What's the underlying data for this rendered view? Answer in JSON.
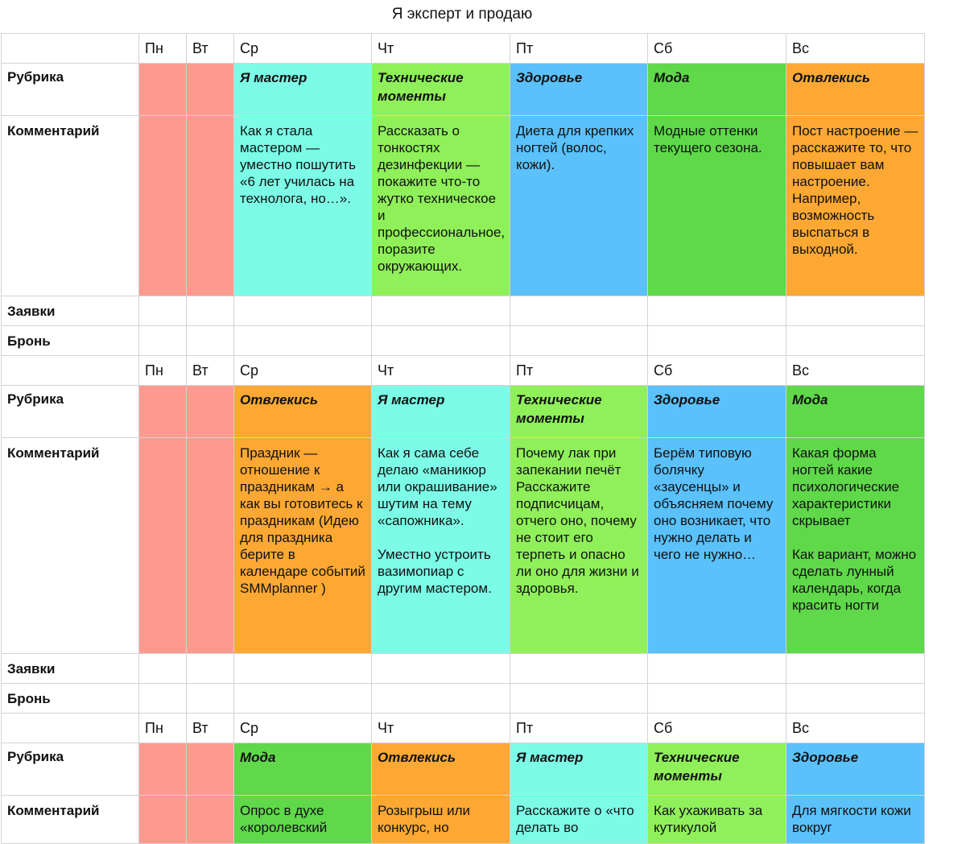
{
  "title": "Я эксперт и продаю",
  "labels": {
    "rubric": "Рубрика",
    "comment": "Комментарий",
    "requests": "Заявки",
    "booking": "Бронь"
  },
  "days": [
    "Пн",
    "Вт",
    "Ср",
    "Чт",
    "Пт",
    "Сб",
    "Вс"
  ],
  "colors": {
    "mon_tue": "#fd9a90",
    "Я мастер": "#7cfce7",
    "Технические моменты": "#8ff05a",
    "Здоровье": "#5ac1fb",
    "Мода": "#5fd84a",
    "Отвлекись": "#fca833"
  },
  "weeks": [
    {
      "cells": [
        {
          "rubric": "Я мастер",
          "comment": [
            "Как я стала мастером — уместно пошутить «6 лет училась на технолога, но…»."
          ]
        },
        {
          "rubric": "Технические моменты",
          "comment": [
            "Рассказать о тонкостях дезинфекции — покажите что-то жутко техническое и профессиональное, поразите окружающих."
          ]
        },
        {
          "rubric": "Здоровье",
          "comment": [
            "Диета для крепких ногтей (волос, кожи)."
          ]
        },
        {
          "rubric": "Мода",
          "comment": [
            "Модные оттенки текущего сезона."
          ]
        },
        {
          "rubric": "Отвлекись",
          "comment": [
            "Пост настроение — расскажите то, что повышает вам настроение. Например, возможность выспаться в выходной."
          ]
        }
      ]
    },
    {
      "cells": [
        {
          "rubric": "Отвлекись",
          "comment": [
            "Праздник — отношение к праздникам → а как вы готовитесь к праздникам (Идею для праздника берите в календаре событий SMMplanner )"
          ]
        },
        {
          "rubric": "Я мастер",
          "comment": [
            "Как я сама себе делаю «маникюр или окрашивание» шутим на тему «сапожника».",
            "Уместно устроить вазимопиар с другим мастером."
          ]
        },
        {
          "rubric": "Технические моменты",
          "comment": [
            "Почему лак при запекании печёт Расскажите подписчицам, отчего оно, почему не стоит его терпеть и опасно ли оно для жизни и здоровья."
          ]
        },
        {
          "rubric": "Здоровье",
          "comment": [
            "Берём типовую болячку «заусенцы» и объясняем почему оно возникает, что нужно делать и чего не нужно…"
          ]
        },
        {
          "rubric": "Мода",
          "comment": [
            "Какая форма ногтей какие психологические характеристики скрывает",
            "Как вариант, можно сделать лунный календарь, когда красить ногти"
          ]
        }
      ]
    },
    {
      "cells": [
        {
          "rubric": "Мода",
          "comment": [
            "Опрос в духе «королевский"
          ]
        },
        {
          "rubric": "Отвлекись",
          "comment": [
            "Розыгрыш или конкурс, но"
          ]
        },
        {
          "rubric": "Я мастер",
          "comment": [
            "Расскажите о «что делать во"
          ]
        },
        {
          "rubric": "Технические моменты",
          "comment": [
            "Как ухаживать за кутикулой"
          ]
        },
        {
          "rubric": "Здоровье",
          "comment": [
            "Для мягкости кожи вокруг"
          ]
        }
      ]
    }
  ]
}
